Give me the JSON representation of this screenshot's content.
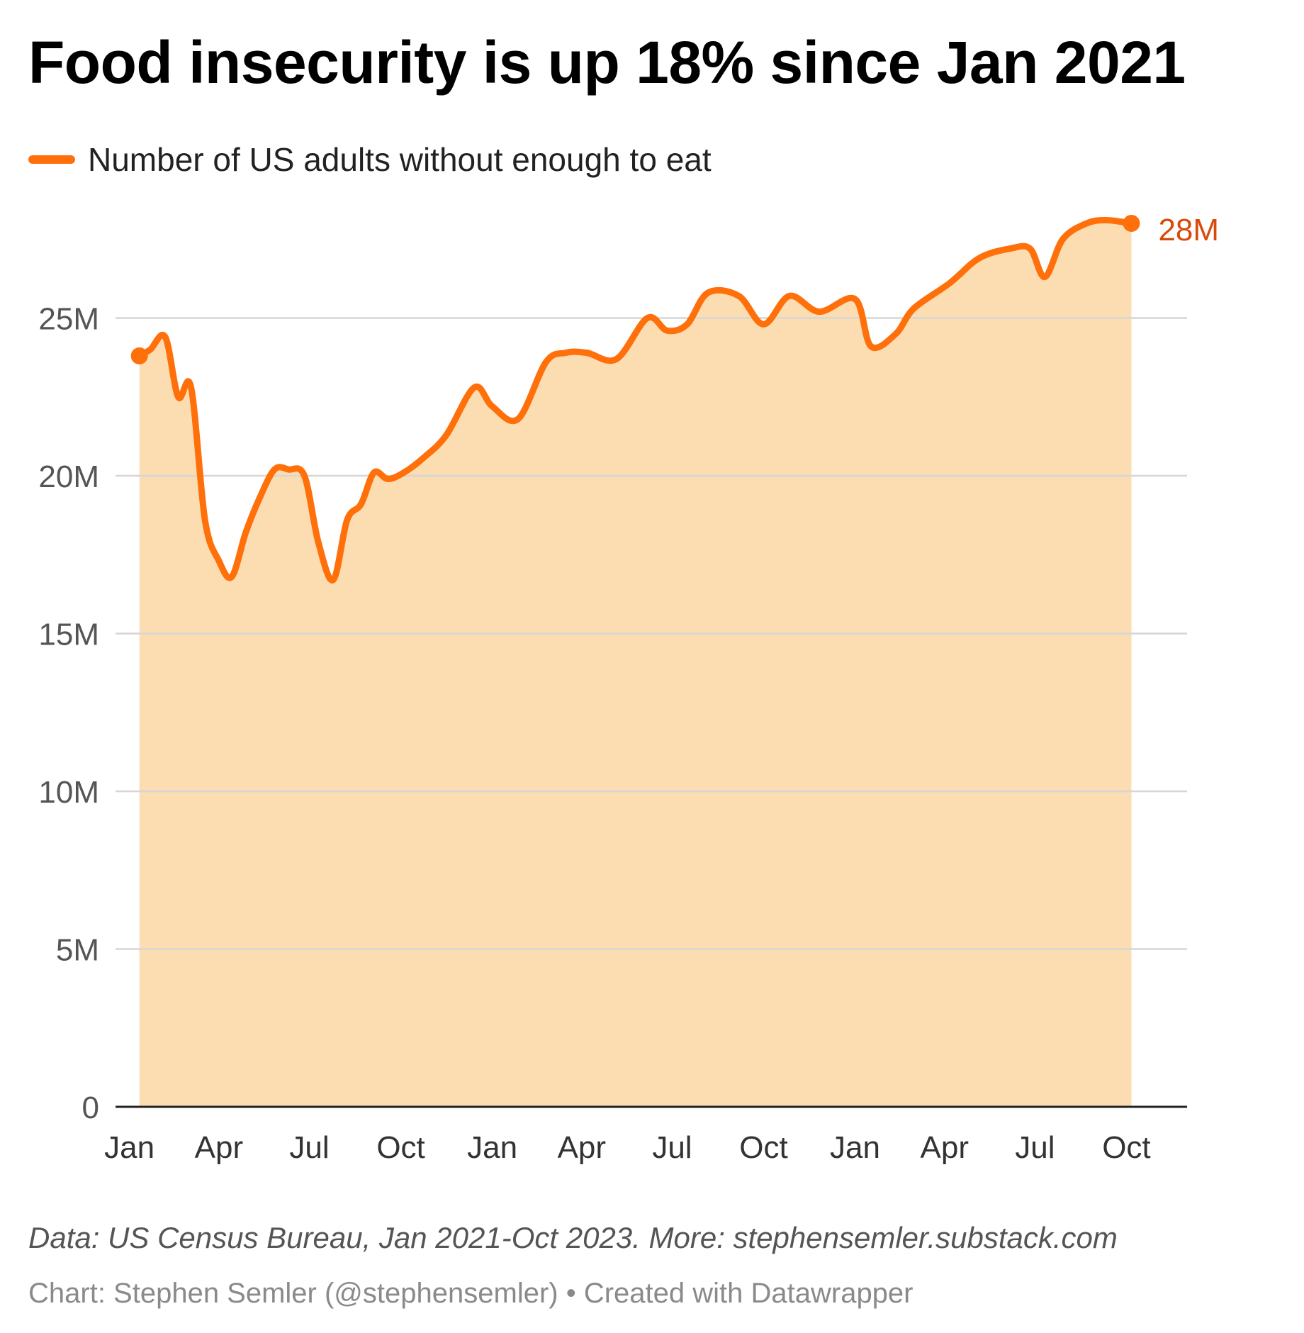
{
  "title": "Food insecurity is up 18% since Jan 2021",
  "notes": "Data: US Census Bureau, Jan 2021-Oct 2023. More: stephensemler.substack.com",
  "credit": "Chart: Stephen Semler (@stephensemler) • Created with Datawrapper",
  "colors": {
    "line": "#ff6f0a",
    "area": "#fcdcb1",
    "end_label": "#d94a0a",
    "grid": "#d6d6d6"
  },
  "chart_data": {
    "type": "area",
    "title": "Food insecurity is up 18% since Jan 2021",
    "xlabel": "",
    "ylabel": "",
    "ylim": [
      0,
      28
    ],
    "y_ticks": [
      0,
      5,
      10,
      15,
      20,
      25
    ],
    "y_tick_labels": [
      "0",
      "5M",
      "10M",
      "15M",
      "20M",
      "25M"
    ],
    "x_ticks": [
      "2021-01-15",
      "2021-04-15",
      "2021-07-15",
      "2021-10-15",
      "2022-01-15",
      "2022-04-15",
      "2022-07-15",
      "2022-10-15",
      "2023-01-15",
      "2023-04-15",
      "2023-07-15",
      "2023-10-15"
    ],
    "x_tick_labels": [
      "Jan",
      "Apr",
      "Jul",
      "Oct",
      "Jan",
      "Apr",
      "Jul",
      "Oct",
      "Jan",
      "Apr",
      "Jul",
      "Oct"
    ],
    "xlim": [
      "2021-01-01",
      "2023-12-15"
    ],
    "legend_position": "top-left",
    "grid": true,
    "end_label": "28M",
    "series": [
      {
        "name": "Number of US adults without enough to eat",
        "unit": "millions",
        "x": [
          "2021-01-25",
          "2021-02-05",
          "2021-02-20",
          "2021-03-05",
          "2021-03-18",
          "2021-04-01",
          "2021-04-15",
          "2021-04-28",
          "2021-05-12",
          "2021-05-26",
          "2021-06-10",
          "2021-06-24",
          "2021-07-10",
          "2021-07-24",
          "2021-08-08",
          "2021-08-22",
          "2021-09-05",
          "2021-09-18",
          "2021-10-02",
          "2021-10-18",
          "2021-11-08",
          "2021-11-30",
          "2021-12-28",
          "2022-01-15",
          "2022-02-10",
          "2022-03-10",
          "2022-03-30",
          "2022-04-20",
          "2022-05-20",
          "2022-06-20",
          "2022-07-10",
          "2022-07-30",
          "2022-08-20",
          "2022-09-20",
          "2022-10-15",
          "2022-11-10",
          "2022-12-10",
          "2023-01-15",
          "2023-01-31",
          "2023-02-25",
          "2023-03-15",
          "2023-04-20",
          "2023-05-20",
          "2023-06-20",
          "2023-07-10",
          "2023-07-25",
          "2023-08-12",
          "2023-09-05",
          "2023-09-25",
          "2023-10-20"
        ],
        "values": [
          23.8,
          24.0,
          24.4,
          22.5,
          22.8,
          18.6,
          17.3,
          16.8,
          18.2,
          19.3,
          20.2,
          20.2,
          20.0,
          17.9,
          16.7,
          18.6,
          19.1,
          20.1,
          19.9,
          20.1,
          20.6,
          21.3,
          22.8,
          22.2,
          21.8,
          23.6,
          23.9,
          23.9,
          23.7,
          25.0,
          24.6,
          24.8,
          25.8,
          25.7,
          24.8,
          25.7,
          25.2,
          25.6,
          24.1,
          24.5,
          25.3,
          26.1,
          26.9,
          27.2,
          27.2,
          26.3,
          27.5,
          28.0,
          28.1,
          28.0
        ]
      }
    ]
  }
}
